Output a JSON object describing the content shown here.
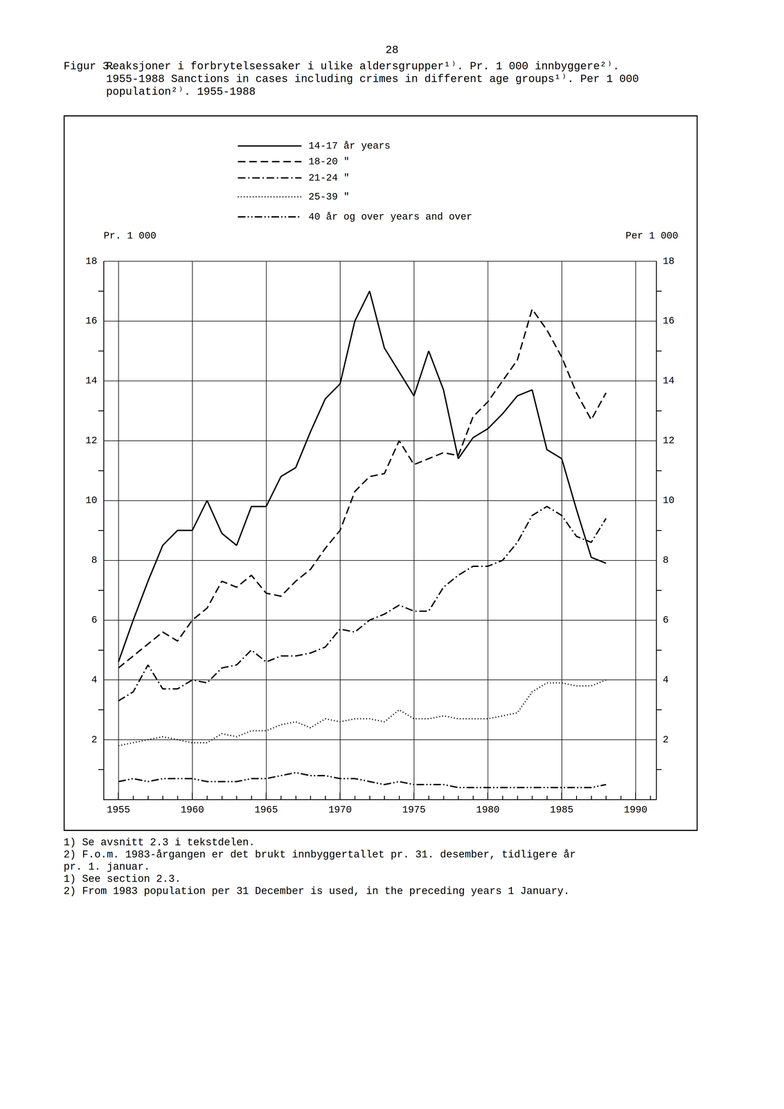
{
  "page_number": "28",
  "chart_data": {
    "type": "line",
    "figure_label": "Figur 3.",
    "title": [
      "Reaksjoner i forbrytelsessaker i ulike aldersgrupper¹⁾. Pr. 1 000 innbyggere²⁾.",
      "1955-1988 Sanctions in cases including crimes in different age groups¹⁾. Per 1 000",
      "population²⁾. 1955-1988"
    ],
    "ylabel": "Pr. 1 000",
    "y2label": "Per 1 000",
    "legend": "top",
    "grid": true,
    "x": [
      1955,
      1956,
      1957,
      1958,
      1959,
      1960,
      1961,
      1962,
      1963,
      1964,
      1965,
      1966,
      1967,
      1968,
      1969,
      1970,
      1971,
      1972,
      1973,
      1974,
      1975,
      1976,
      1977,
      1978,
      1979,
      1980,
      1981,
      1982,
      1983,
      1984,
      1985,
      1986,
      1987,
      1988
    ],
    "xlim": [
      1954,
      1991.4
    ],
    "xticks": [
      1955,
      1960,
      1965,
      1970,
      1975,
      1980,
      1985,
      1990
    ],
    "ylim": [
      0,
      18
    ],
    "yticks": [
      2,
      4,
      6,
      8,
      10,
      12,
      14,
      16,
      18
    ],
    "y2lim": [
      0,
      18
    ],
    "y2ticks": [
      2,
      4,
      6,
      8,
      10,
      12,
      14,
      16,
      18
    ],
    "series": [
      {
        "name": "14-17 år years",
        "color": "#000000",
        "line_style": "solid",
        "values": [
          4.6,
          6.0,
          7.3,
          8.5,
          9.0,
          9.0,
          10.0,
          8.9,
          8.5,
          9.8,
          9.8,
          10.8,
          11.1,
          12.3,
          13.4,
          13.9,
          16.0,
          17.0,
          15.1,
          14.3,
          13.5,
          15.0,
          13.7,
          11.4,
          12.1,
          12.4,
          12.9,
          13.5,
          13.7,
          11.7,
          11.4,
          9.7,
          8.1,
          7.9
        ]
      },
      {
        "name": "18-20 \"",
        "color": "#000000",
        "line_style": "dashed",
        "values": [
          4.4,
          4.8,
          5.2,
          5.6,
          5.3,
          6.0,
          6.4,
          7.3,
          7.1,
          7.5,
          6.9,
          6.8,
          7.3,
          7.7,
          8.4,
          9.0,
          10.3,
          10.8,
          10.9,
          12.0,
          11.2,
          11.4,
          11.6,
          11.5,
          12.8,
          13.3,
          14.0,
          14.7,
          16.4,
          15.7,
          14.8,
          13.6,
          12.7,
          13.6
        ]
      },
      {
        "name": "21-24 \"",
        "color": "#000000",
        "line_style": "dashdot",
        "values": [
          3.3,
          3.6,
          4.5,
          3.7,
          3.7,
          4.0,
          3.9,
          4.4,
          4.5,
          5.0,
          4.6,
          4.8,
          4.8,
          4.9,
          5.1,
          5.7,
          5.6,
          6.0,
          6.2,
          6.5,
          6.3,
          6.3,
          7.1,
          7.5,
          7.8,
          7.8,
          8.0,
          8.6,
          9.5,
          9.8,
          9.5,
          8.8,
          8.6,
          9.4
        ]
      },
      {
        "name": "25-39 \"",
        "color": "#000000",
        "line_style": "dotted",
        "values": [
          1.8,
          1.9,
          2.0,
          2.1,
          2.0,
          1.9,
          1.9,
          2.2,
          2.1,
          2.3,
          2.3,
          2.5,
          2.6,
          2.4,
          2.7,
          2.6,
          2.7,
          2.7,
          2.6,
          3.0,
          2.7,
          2.7,
          2.8,
          2.7,
          2.7,
          2.7,
          2.8,
          2.9,
          3.6,
          3.9,
          3.9,
          3.8,
          3.8,
          4.0
        ]
      },
      {
        "name": "40 år og over years and over",
        "color": "#000000",
        "line_style": "dashdotdot",
        "values": [
          0.6,
          0.7,
          0.6,
          0.7,
          0.7,
          0.7,
          0.6,
          0.6,
          0.6,
          0.7,
          0.7,
          0.8,
          0.9,
          0.8,
          0.8,
          0.7,
          0.7,
          0.6,
          0.5,
          0.6,
          0.5,
          0.5,
          0.5,
          0.4,
          0.4,
          0.4,
          0.4,
          0.4,
          0.4,
          0.4,
          0.4,
          0.4,
          0.4,
          0.5
        ]
      }
    ]
  },
  "footnotes": [
    "1) Se avsnitt 2.3 i tekstdelen.",
    "2) F.o.m. 1983-årgangen er det brukt innbyggertallet pr. 31. desember, tidligere år",
    "pr. 1. januar.",
    "1) See section 2.3.",
    "2) From 1983 population per 31 December is used, in the preceding years 1 January."
  ]
}
